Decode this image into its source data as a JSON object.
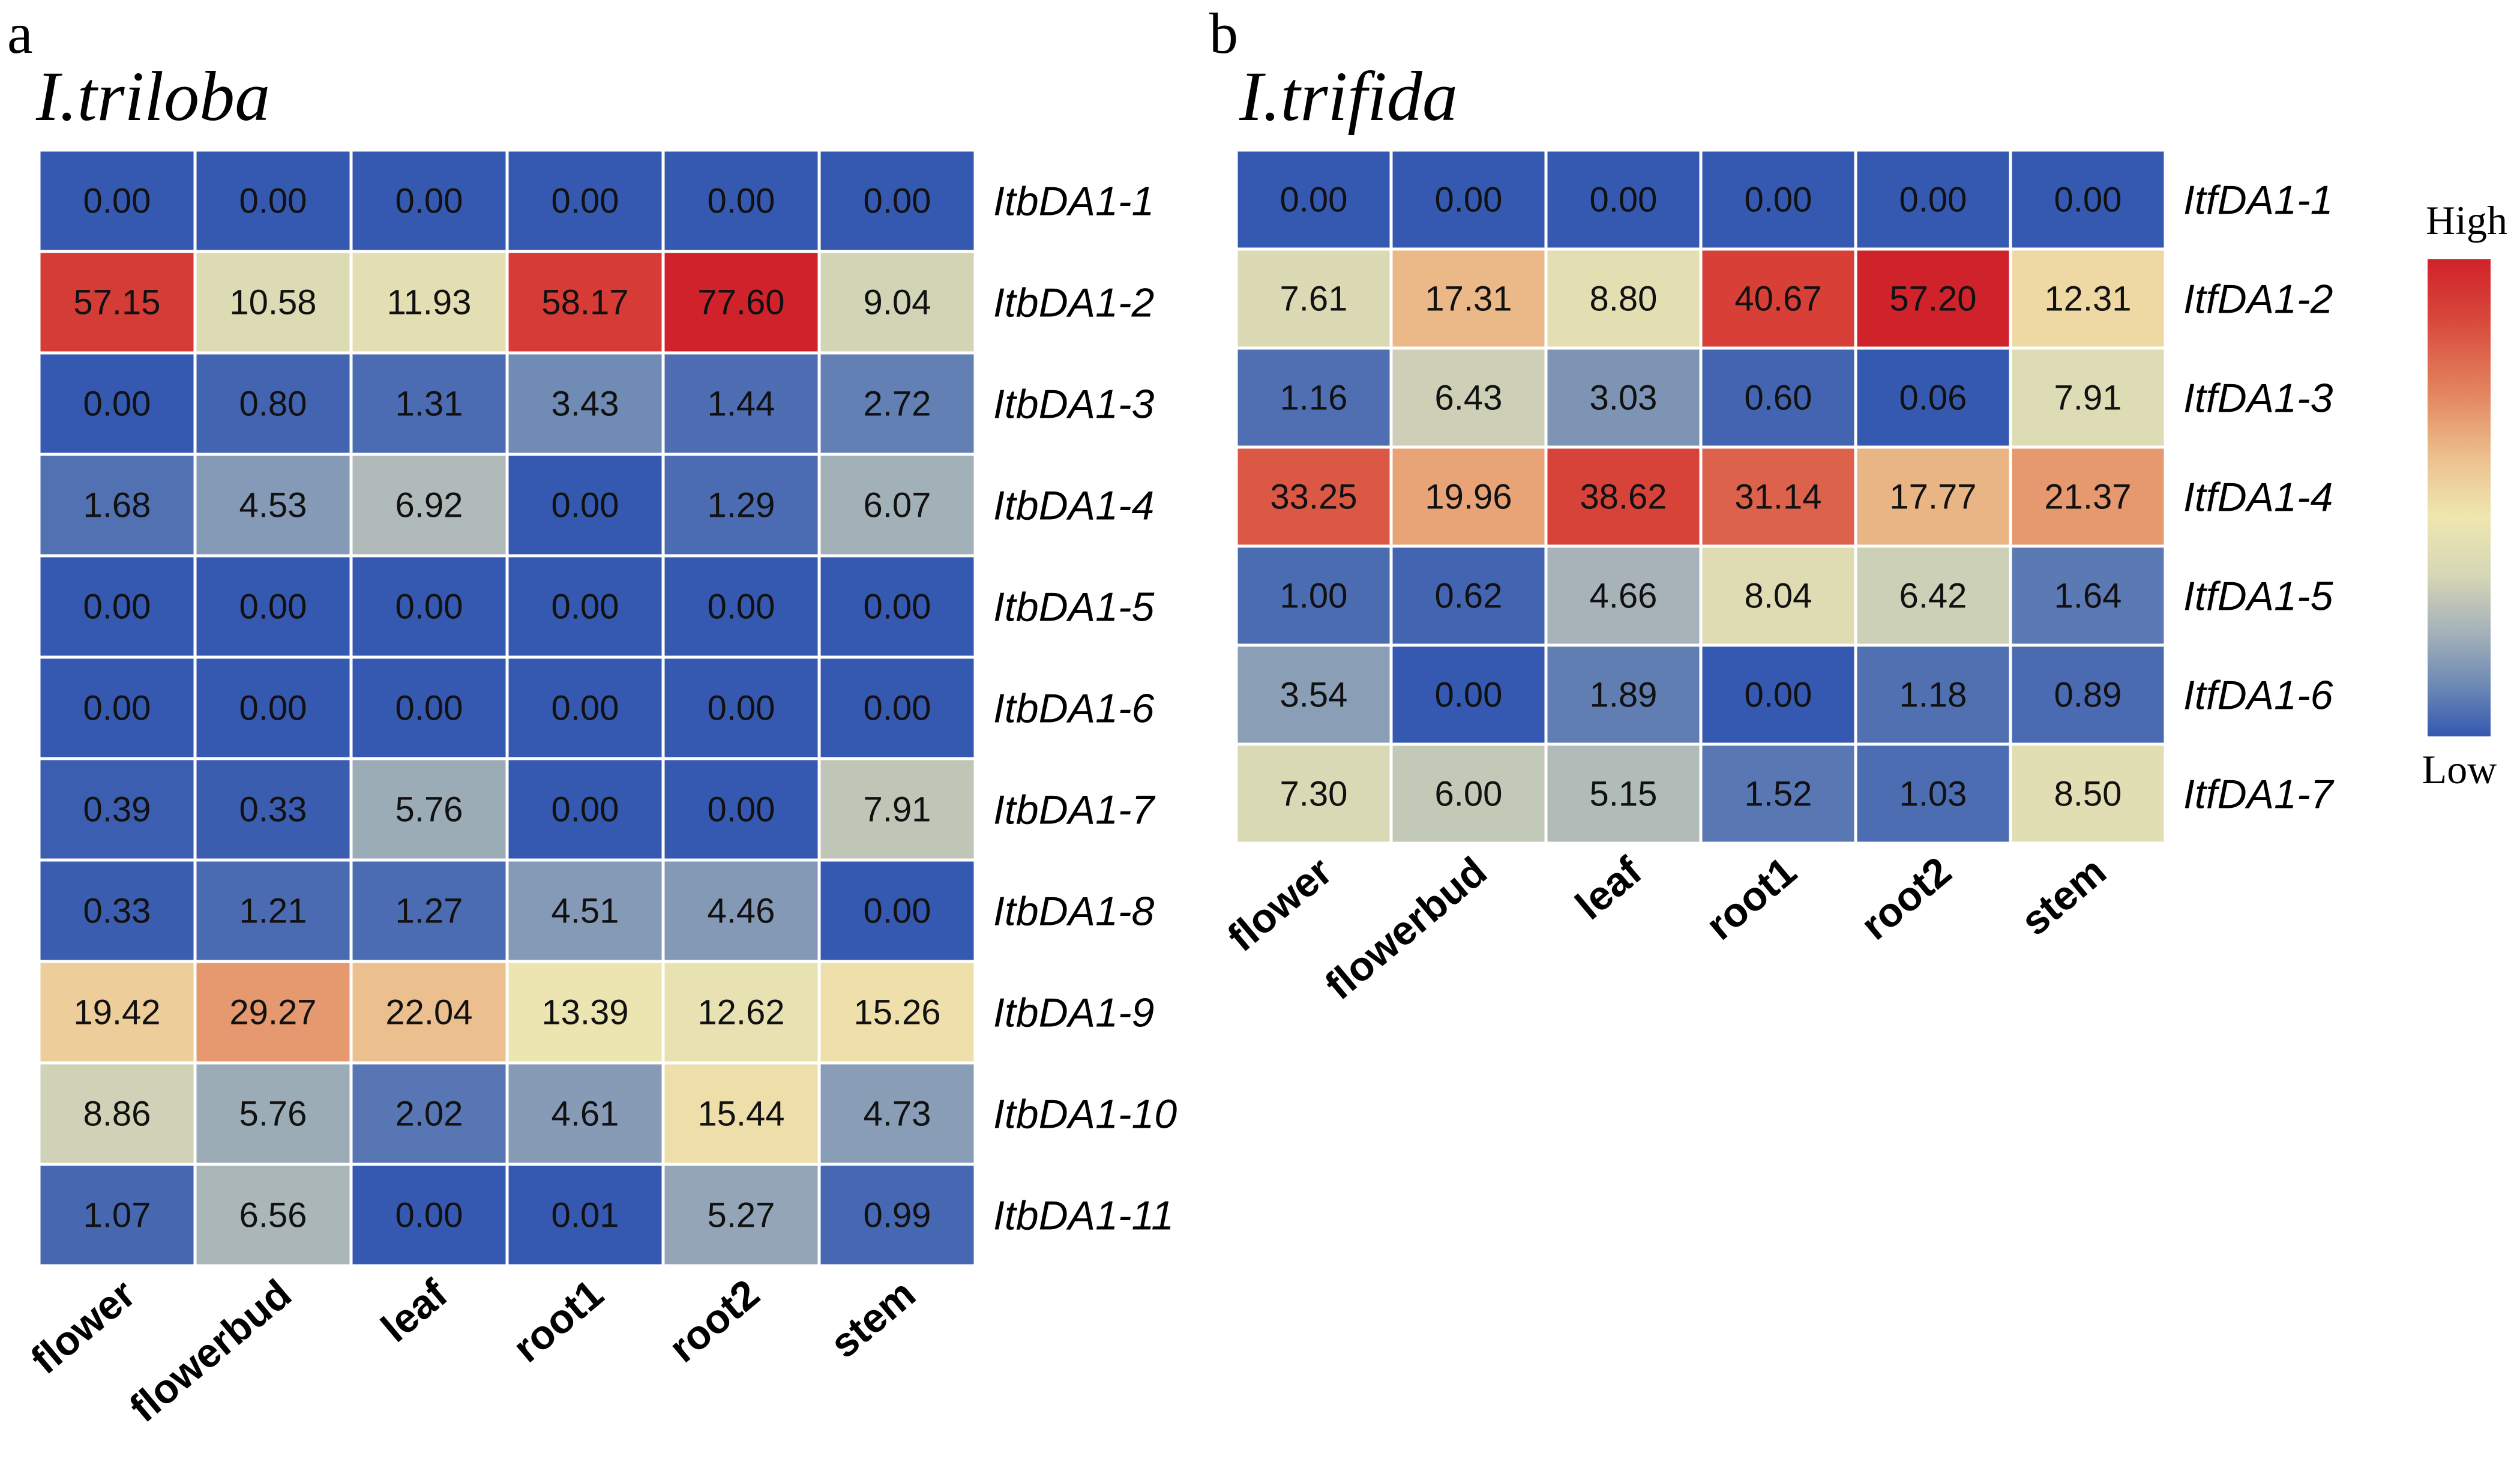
{
  "chart_data": [
    {
      "type": "heatmap",
      "panel_letter": "a",
      "title": "I.triloba",
      "columns": [
        "flower",
        "flowerbud",
        "leaf",
        "root1",
        "root2",
        "stem"
      ],
      "rows": [
        "ItbDA1-1",
        "ItbDA1-2",
        "ItbDA1-3",
        "ItbDA1-4",
        "ItbDA1-5",
        "ItbDA1-6",
        "ItbDA1-7",
        "ItbDA1-8",
        "ItbDA1-9",
        "ItbDA1-10",
        "ItbDA1-11"
      ],
      "values": [
        [
          "0.00",
          "0.00",
          "0.00",
          "0.00",
          "0.00",
          "0.00"
        ],
        [
          "57.15",
          "10.58",
          "11.93",
          "58.17",
          "77.60",
          "9.04"
        ],
        [
          "0.00",
          "0.80",
          "1.31",
          "3.43",
          "1.44",
          "2.72"
        ],
        [
          "1.68",
          "4.53",
          "6.92",
          "0.00",
          "1.29",
          "6.07"
        ],
        [
          "0.00",
          "0.00",
          "0.00",
          "0.00",
          "0.00",
          "0.00"
        ],
        [
          "0.00",
          "0.00",
          "0.00",
          "0.00",
          "0.00",
          "0.00"
        ],
        [
          "0.39",
          "0.33",
          "5.76",
          "0.00",
          "0.00",
          "7.91"
        ],
        [
          "0.33",
          "1.21",
          "1.27",
          "4.51",
          "4.46",
          "0.00"
        ],
        [
          "19.42",
          "29.27",
          "22.04",
          "13.39",
          "12.62",
          "15.26"
        ],
        [
          "8.86",
          "5.76",
          "2.02",
          "4.61",
          "15.44",
          "4.73"
        ],
        [
          "1.07",
          "6.56",
          "0.00",
          "0.01",
          "5.27",
          "0.99"
        ]
      ]
    },
    {
      "type": "heatmap",
      "panel_letter": "b",
      "title": "I.trifida",
      "columns": [
        "flower",
        "flowerbud",
        "leaf",
        "root1",
        "root2",
        "stem"
      ],
      "rows": [
        "ItfDA1-1",
        "ItfDA1-2",
        "ItfDA1-3",
        "ItfDA1-4",
        "ItfDA1-5",
        "ItfDA1-6",
        "ItfDA1-7"
      ],
      "values": [
        [
          "0.00",
          "0.00",
          "0.00",
          "0.00",
          "0.00",
          "0.00"
        ],
        [
          "7.61",
          "17.31",
          "8.80",
          "40.67",
          "57.20",
          "12.31"
        ],
        [
          "1.16",
          "6.43",
          "3.03",
          "0.60",
          "0.06",
          "7.91"
        ],
        [
          "33.25",
          "19.96",
          "38.62",
          "31.14",
          "17.77",
          "21.37"
        ],
        [
          "1.00",
          "0.62",
          "4.66",
          "8.04",
          "6.42",
          "1.64"
        ],
        [
          "3.54",
          "0.00",
          "1.89",
          "0.00",
          "1.18",
          "0.89"
        ],
        [
          "7.30",
          "6.00",
          "5.15",
          "1.52",
          "1.03",
          "8.50"
        ]
      ]
    }
  ],
  "legend": {
    "high_label": "High",
    "low_label": "Low",
    "colors": [
      "#3558b0",
      "#6a86b4",
      "#a5b2b8",
      "#d6d7b6",
      "#efe6b0",
      "#ecc28f",
      "#e3855f",
      "#d8453a",
      "#d0222a"
    ]
  }
}
